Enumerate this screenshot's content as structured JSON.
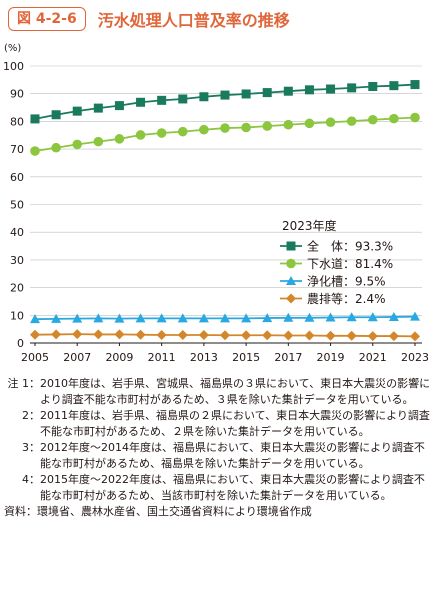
{
  "figure": {
    "number": "図 4-2-6",
    "title": "汚水処理人口普及率の推移"
  },
  "chart_data": {
    "type": "line",
    "ylabel": "(%)",
    "ylim": [
      0,
      100
    ],
    "yticks": [
      "0",
      "10",
      "20",
      "30",
      "40",
      "50",
      "60",
      "70",
      "80",
      "90",
      "100"
    ],
    "x": [
      2005,
      2006,
      2007,
      2008,
      2009,
      2010,
      2011,
      2012,
      2013,
      2014,
      2015,
      2016,
      2017,
      2018,
      2019,
      2020,
      2021,
      2022,
      2023
    ],
    "xticks": [
      "2005",
      "2007",
      "2009",
      "2011",
      "2013",
      "2015",
      "2017",
      "2019",
      "2021",
      "2023"
    ],
    "legend_title": "2023年度",
    "series": [
      {
        "name": "全　体",
        "label": "全　体：93.3%",
        "color": "#1a7a5e",
        "marker": "square",
        "values": [
          80.9,
          82.4,
          83.7,
          84.8,
          85.7,
          86.9,
          87.6,
          88.1,
          88.9,
          89.5,
          89.9,
          90.4,
          90.9,
          91.4,
          91.7,
          92.1,
          92.6,
          92.9,
          93.3
        ]
      },
      {
        "name": "下水道",
        "label": "下水道：81.4%",
        "color": "#8cc63f",
        "marker": "circle",
        "values": [
          69.3,
          70.5,
          71.7,
          72.7,
          73.7,
          75.1,
          75.8,
          76.3,
          77.0,
          77.6,
          77.8,
          78.3,
          78.8,
          79.3,
          79.7,
          80.1,
          80.6,
          81.0,
          81.4
        ]
      },
      {
        "name": "浄化槽",
        "label": "浄化槽：9.5%",
        "color": "#29a9e0",
        "marker": "triangle",
        "values": [
          8.6,
          8.7,
          8.8,
          8.9,
          8.8,
          8.9,
          8.9,
          8.9,
          8.9,
          8.9,
          8.9,
          9.0,
          9.1,
          9.1,
          9.2,
          9.3,
          9.3,
          9.4,
          9.5
        ]
      },
      {
        "name": "農排等",
        "label": "農排等：2.4%",
        "color": "#d4862a",
        "marker": "diamond",
        "values": [
          3.0,
          3.1,
          3.2,
          3.1,
          3.1,
          3.0,
          2.9,
          2.9,
          2.9,
          2.8,
          2.8,
          2.8,
          2.7,
          2.7,
          2.6,
          2.6,
          2.5,
          2.5,
          2.4
        ]
      }
    ]
  },
  "notes": [
    {
      "num": "注 1：",
      "text": "2010年度は、岩手県、宮城県、福島県の３県において、東日本大震災の影響により調査不能な市町村があるため、３県を除いた集計データを用いている。"
    },
    {
      "num": "2：",
      "text": "2011年度は、岩手県、福島県の２県において、東日本大震災の影響により調査不能な市町村があるため、２県を除いた集計データを用いている。"
    },
    {
      "num": "3：",
      "text": "2012年度～2014年度は、福島県において、東日本大震災の影響により調査不能な市町村があるため、福島県を除いた集計データを用いている。"
    },
    {
      "num": "4：",
      "text": "2015年度～2022年度は、福島県において、東日本大震災の影響により調査不能な市町村があるため、当該市町村を除いた集計データを用いている。"
    }
  ],
  "source": {
    "label": "資料：",
    "text": "環境省、農林水産省、国土交通省資料により環境省作成"
  }
}
